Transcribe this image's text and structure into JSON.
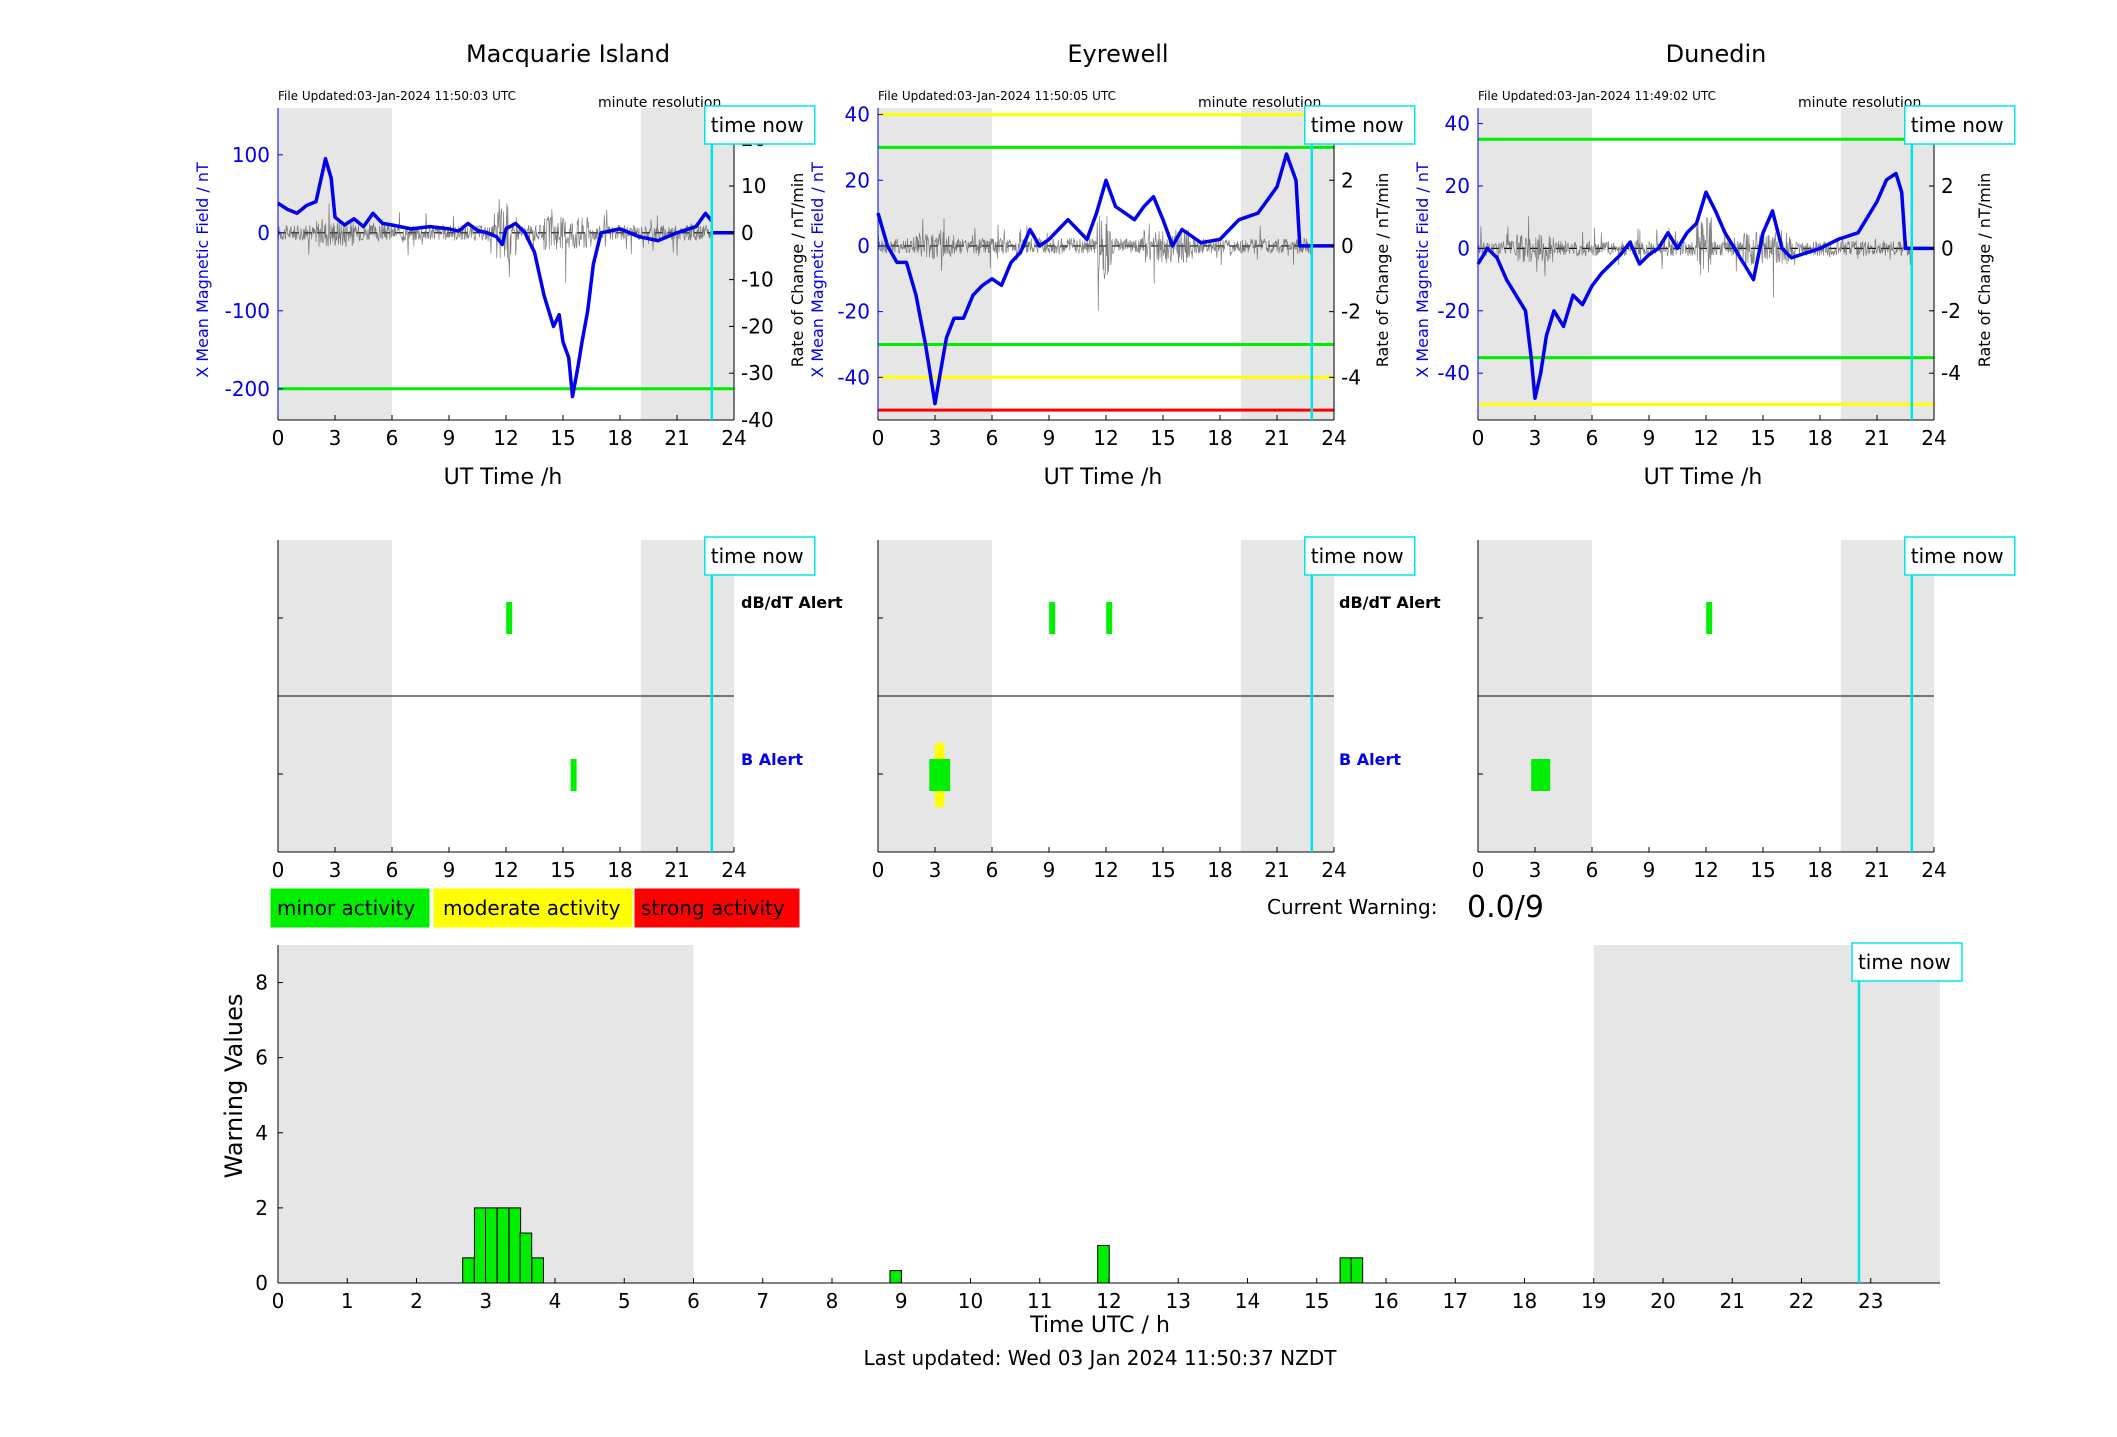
{
  "colors": {
    "minor": "#00ee00",
    "moderate": "#ffff00",
    "strong": "#ff0000",
    "x_mean_line": "#0000ee",
    "time_now": "#00e5e5",
    "night_shade": "#e6e6e6",
    "rate_line": "#555555"
  },
  "time_now_label": "time now",
  "time_now_hour": 22.83,
  "stations": [
    {
      "name": "Macquarie Island",
      "file_updated": "File Updated:03-Jan-2024 11:50:03 UTC",
      "resolution": "minute resolution",
      "ylabel_left": "X Mean Magnetic Field / nT",
      "ylabel_right": "Rate of Change / nT/min",
      "xlabel": "UT Time /h",
      "ylim_left": [
        -240,
        160
      ],
      "yticks_left": [
        100,
        0,
        -100,
        -200
      ],
      "ylim_right": [
        -40,
        26.67
      ],
      "yticks_right": [
        20,
        10,
        0,
        -10,
        -20,
        -30,
        -40
      ],
      "xticks": [
        0,
        3,
        6,
        9,
        12,
        15,
        18,
        21,
        24
      ],
      "night": [
        [
          0,
          6
        ],
        [
          19.1,
          24
        ]
      ],
      "thresholds": [
        {
          "value": -200,
          "color": "green"
        }
      ],
      "dbdt_alerts": [
        {
          "start": 11.8,
          "end": 12.2,
          "level": "minor"
        }
      ],
      "b_alerts": [
        {
          "start": 15.4,
          "end": 15.7,
          "level": "minor"
        }
      ],
      "series": [
        [
          0,
          38
        ],
        [
          0.5,
          30
        ],
        [
          1,
          25
        ],
        [
          1.5,
          35
        ],
        [
          2,
          40
        ],
        [
          2.5,
          95
        ],
        [
          2.8,
          70
        ],
        [
          3,
          20
        ],
        [
          3.5,
          10
        ],
        [
          4,
          18
        ],
        [
          4.5,
          8
        ],
        [
          5,
          25
        ],
        [
          5.5,
          12
        ],
        [
          6,
          10
        ],
        [
          7,
          5
        ],
        [
          8,
          8
        ],
        [
          9,
          5
        ],
        [
          9.5,
          2
        ],
        [
          10,
          12
        ],
        [
          10.5,
          3
        ],
        [
          11,
          0
        ],
        [
          11.5,
          -5
        ],
        [
          11.8,
          -15
        ],
        [
          12,
          5
        ],
        [
          12.5,
          12
        ],
        [
          13,
          0
        ],
        [
          13.5,
          -25
        ],
        [
          14,
          -80
        ],
        [
          14.5,
          -120
        ],
        [
          14.8,
          -105
        ],
        [
          15,
          -140
        ],
        [
          15.3,
          -160
        ],
        [
          15.5,
          -210
        ],
        [
          15.8,
          -170
        ],
        [
          16,
          -140
        ],
        [
          16.3,
          -100
        ],
        [
          16.6,
          -40
        ],
        [
          17,
          0
        ],
        [
          18,
          5
        ],
        [
          18.5,
          0
        ],
        [
          19,
          -5
        ],
        [
          20,
          -10
        ],
        [
          21,
          0
        ],
        [
          22,
          8
        ],
        [
          22.5,
          25
        ],
        [
          22.83,
          15
        ]
      ]
    },
    {
      "name": "Eyrewell",
      "file_updated": "File Updated:03-Jan-2024 11:50:05 UTC",
      "resolution": "minute resolution",
      "ylabel_left": "X Mean Magnetic Field / nT",
      "ylabel_right": "Rate of Change / nT/min",
      "xlabel": "UT Time /h",
      "ylim_left": [
        -53,
        42
      ],
      "yticks_left": [
        40,
        20,
        0,
        -20,
        -40
      ],
      "ylim_right": [
        -5.3,
        4.2
      ],
      "yticks_right": [
        4,
        2,
        0,
        -2,
        -4
      ],
      "xticks": [
        0,
        3,
        6,
        9,
        12,
        15,
        18,
        21,
        24
      ],
      "night": [
        [
          0,
          6
        ],
        [
          19.1,
          24
        ]
      ],
      "thresholds": [
        {
          "value": 40,
          "color": "yellow"
        },
        {
          "value": 30,
          "color": "green"
        },
        {
          "value": -30,
          "color": "green"
        },
        {
          "value": -40,
          "color": "yellow"
        },
        {
          "value": -50,
          "color": "red"
        }
      ],
      "dbdt_alerts": [
        {
          "start": 8.8,
          "end": 9.2,
          "level": "minor"
        },
        {
          "start": 11.8,
          "end": 12.2,
          "level": "minor"
        }
      ],
      "b_alerts": [
        {
          "start": 2.7,
          "end": 3.8,
          "level": "minor",
          "band": "inner"
        },
        {
          "start": 3.0,
          "end": 3.5,
          "level": "moderate",
          "band": "outer"
        }
      ],
      "series": [
        [
          0,
          10
        ],
        [
          0.5,
          0
        ],
        [
          1,
          -5
        ],
        [
          1.5,
          -5
        ],
        [
          2,
          -15
        ],
        [
          2.5,
          -30
        ],
        [
          3,
          -48
        ],
        [
          3.3,
          -38
        ],
        [
          3.6,
          -28
        ],
        [
          4,
          -22
        ],
        [
          4.5,
          -22
        ],
        [
          5,
          -15
        ],
        [
          5.5,
          -12
        ],
        [
          6,
          -10
        ],
        [
          6.5,
          -12
        ],
        [
          7,
          -5
        ],
        [
          7.5,
          -2
        ],
        [
          8,
          5
        ],
        [
          8.5,
          0
        ],
        [
          9,
          2
        ],
        [
          9.5,
          5
        ],
        [
          10,
          8
        ],
        [
          10.5,
          5
        ],
        [
          11,
          2
        ],
        [
          11.5,
          10
        ],
        [
          12,
          20
        ],
        [
          12.5,
          12
        ],
        [
          13,
          10
        ],
        [
          13.5,
          8
        ],
        [
          14,
          12
        ],
        [
          14.5,
          15
        ],
        [
          15,
          8
        ],
        [
          15.5,
          0
        ],
        [
          16,
          5
        ],
        [
          17,
          1
        ],
        [
          18,
          2
        ],
        [
          19,
          8
        ],
        [
          20,
          10
        ],
        [
          21,
          18
        ],
        [
          21.5,
          28
        ],
        [
          22,
          20
        ],
        [
          22.2,
          0
        ],
        [
          22.83,
          0
        ]
      ]
    },
    {
      "name": "Dunedin",
      "file_updated": "File Updated:03-Jan-2024 11:49:02 UTC",
      "resolution": "minute resolution",
      "ylabel_left": "X Mean Magnetic Field / nT",
      "ylabel_right": "Rate of Change / nT/min",
      "xlabel": "UT Time /h",
      "ylim_left": [
        -55,
        45
      ],
      "yticks_left": [
        40,
        20,
        0,
        -20,
        -40
      ],
      "ylim_right": [
        -5.5,
        4.5
      ],
      "yticks_right": [
        4,
        2,
        0,
        -2,
        -4
      ],
      "xticks": [
        0,
        3,
        6,
        9,
        12,
        15,
        18,
        21,
        24
      ],
      "night": [
        [
          0,
          6
        ],
        [
          19.1,
          24
        ]
      ],
      "thresholds": [
        {
          "value": 35,
          "color": "green"
        },
        {
          "value": -35,
          "color": "green"
        },
        {
          "value": -50,
          "color": "yellow"
        }
      ],
      "dbdt_alerts": [
        {
          "start": 11.8,
          "end": 12.2,
          "level": "minor"
        }
      ],
      "b_alerts": [
        {
          "start": 2.8,
          "end": 3.8,
          "level": "minor"
        }
      ],
      "series": [
        [
          0,
          -5
        ],
        [
          0.5,
          0
        ],
        [
          1,
          -3
        ],
        [
          1.5,
          -10
        ],
        [
          2,
          -15
        ],
        [
          2.5,
          -20
        ],
        [
          2.8,
          -35
        ],
        [
          3,
          -48
        ],
        [
          3.3,
          -40
        ],
        [
          3.6,
          -28
        ],
        [
          4,
          -20
        ],
        [
          4.5,
          -25
        ],
        [
          5,
          -15
        ],
        [
          5.5,
          -18
        ],
        [
          6,
          -12
        ],
        [
          6.5,
          -8
        ],
        [
          7,
          -5
        ],
        [
          7.5,
          -2
        ],
        [
          8,
          2
        ],
        [
          8.5,
          -5
        ],
        [
          9,
          -2
        ],
        [
          9.5,
          0
        ],
        [
          10,
          5
        ],
        [
          10.5,
          0
        ],
        [
          11,
          5
        ],
        [
          11.5,
          8
        ],
        [
          12,
          18
        ],
        [
          12.5,
          12
        ],
        [
          13,
          5
        ],
        [
          13.5,
          0
        ],
        [
          14,
          -5
        ],
        [
          14.5,
          -10
        ],
        [
          15,
          5
        ],
        [
          15.5,
          12
        ],
        [
          16,
          0
        ],
        [
          16.5,
          -3
        ],
        [
          17,
          -2
        ],
        [
          18,
          0
        ],
        [
          19,
          3
        ],
        [
          20,
          5
        ],
        [
          20.5,
          10
        ],
        [
          21,
          15
        ],
        [
          21.5,
          22
        ],
        [
          22,
          24
        ],
        [
          22.3,
          18
        ],
        [
          22.5,
          0
        ],
        [
          22.83,
          0
        ]
      ]
    }
  ],
  "alert_labels": {
    "dbdt": "dB/dT Alert",
    "b": "B Alert"
  },
  "legend": [
    {
      "label": "minor activity",
      "level": "minor"
    },
    {
      "label": "moderate activity",
      "level": "moderate"
    },
    {
      "label": "strong activity",
      "level": "strong"
    }
  ],
  "current_warning": {
    "label": "Current Warning:",
    "value": "0.0/9"
  },
  "chart_data": {
    "type": "bar",
    "title": "",
    "xlabel": "Time UTC / h",
    "ylabel": "Warning Values",
    "xlim": [
      0,
      24
    ],
    "ylim": [
      0,
      9
    ],
    "xticks": [
      0,
      1,
      2,
      3,
      4,
      5,
      6,
      7,
      8,
      9,
      10,
      11,
      12,
      13,
      14,
      15,
      16,
      17,
      18,
      19,
      20,
      21,
      22,
      23
    ],
    "yticks": [
      0,
      2,
      4,
      6,
      8
    ],
    "night": [
      [
        0,
        6
      ],
      [
        19,
        24
      ]
    ],
    "bars": [
      {
        "x": 2.75,
        "value": 0.67
      },
      {
        "x": 2.92,
        "value": 2
      },
      {
        "x": 3.08,
        "value": 2
      },
      {
        "x": 3.25,
        "value": 2
      },
      {
        "x": 3.42,
        "value": 2
      },
      {
        "x": 3.58,
        "value": 1.33
      },
      {
        "x": 3.75,
        "value": 0.67
      },
      {
        "x": 8.92,
        "value": 0.33
      },
      {
        "x": 11.92,
        "value": 1
      },
      {
        "x": 15.42,
        "value": 0.67
      },
      {
        "x": 15.58,
        "value": 0.67
      }
    ]
  },
  "last_updated": "Last updated: Wed 03 Jan 2024 11:50:37 NZDT"
}
